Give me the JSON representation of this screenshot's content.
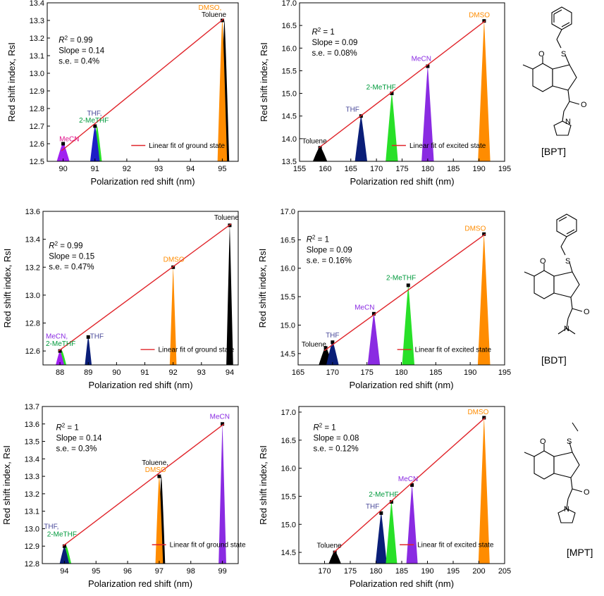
{
  "molecules": [
    {
      "label": "[BPT]",
      "atoms": {
        "O": "O",
        "N": "N"
      }
    },
    {
      "label": "[BDT]",
      "atoms": {
        "O": "O",
        "N": "N"
      }
    },
    {
      "label": "[MPT]",
      "atoms": {
        "O": "O",
        "N": "N"
      }
    }
  ],
  "chart_data": [
    {
      "type": "area",
      "xlabel": "Polarization red shift (nm)",
      "ylabel": "Red shift index, RsI",
      "xlim": [
        89.5,
        95.5
      ],
      "ylim": [
        12.5,
        13.4
      ],
      "xticks": [
        "90",
        "91",
        "92",
        "93",
        "94",
        "95"
      ],
      "yticks": [
        "12.5",
        "12.6",
        "12.7",
        "12.8",
        "12.9",
        "13.0",
        "13.1",
        "13.2",
        "13.3",
        "13.4"
      ],
      "fit_label": "Linear fit of ground state",
      "fit_line": {
        "x": [
          89.95,
          95.05
        ],
        "y": [
          12.56,
          13.31
        ]
      },
      "stats": {
        "r2": "R² = 0.99",
        "slope": "Slope = 0.14",
        "se": "s.e. = 0.4%"
      },
      "peaks": [
        {
          "name": "MeCN",
          "x": 90,
          "y": 12.6,
          "hw": 0.2,
          "colors": [
            "#a020f0"
          ]
        },
        {
          "name": "THF",
          "x": 91,
          "y": 12.7,
          "hw": 0.15,
          "colors": [
            "#1e1ec8",
            "#28e028"
          ]
        },
        {
          "name": "2-MeTHF",
          "x": 91,
          "y": 12.7,
          "hw": 0.15,
          "colors": []
        },
        {
          "name": "DMSO",
          "x": 95,
          "y": 13.3,
          "hw": 0.15,
          "colors": [
            "#ff8c00",
            "#000000"
          ]
        },
        {
          "name": "Toluene",
          "x": 95,
          "y": 13.3,
          "hw": 0.15,
          "colors": []
        }
      ],
      "peak_labels": [
        {
          "text": "MeCN",
          "color": "#e0148c",
          "x": 89.88,
          "y": 12.615
        },
        {
          "text": "THF,",
          "color": "#4a4a9a",
          "x": 90.75,
          "y": 12.76
        },
        {
          "text": "2-MeTHF",
          "color": "#009a3c",
          "x": 90.5,
          "y": 12.72
        },
        {
          "text": "DMSO,",
          "color": "#ff8c00",
          "x": 94.25,
          "y": 13.36
        },
        {
          "text": "Toluene",
          "color": "#000000",
          "x": 94.35,
          "y": 13.32
        }
      ]
    },
    {
      "type": "area",
      "xlabel": "Polarization red shift (nm)",
      "ylabel": "Red shift index, RsI",
      "xlim": [
        155,
        195
      ],
      "ylim": [
        13.5,
        17.0
      ],
      "xticks": [
        "155",
        "160",
        "165",
        "170",
        "175",
        "180",
        "185",
        "190",
        "195"
      ],
      "yticks": [
        "13.5",
        "14.0",
        "14.5",
        "15.0",
        "15.5",
        "16.0",
        "16.5",
        "17.0"
      ],
      "fit_label": "Linear fit of excited state",
      "fit_line": {
        "x": [
          158.8,
          191.2
        ],
        "y": [
          13.8,
          16.6
        ]
      },
      "stats": {
        "r2": "R² = 1",
        "slope": "Slope = 0.09",
        "se": "s.e. = 0.08%"
      },
      "peaks": [
        {
          "name": "Toluene",
          "x": 159,
          "y": 13.8,
          "hw": 1.4,
          "colors": [
            "#000000"
          ]
        },
        {
          "name": "THF",
          "x": 167,
          "y": 14.5,
          "hw": 1.2,
          "colors": [
            "#0a1e78"
          ]
        },
        {
          "name": "2-MeTHF",
          "x": 173,
          "y": 15.0,
          "hw": 1.2,
          "colors": [
            "#28e028"
          ]
        },
        {
          "name": "MeCN",
          "x": 180,
          "y": 15.6,
          "hw": 1.2,
          "colors": [
            "#8a2be2"
          ]
        },
        {
          "name": "DMSO",
          "x": 191,
          "y": 16.6,
          "hw": 1.2,
          "colors": [
            "#ff8c00"
          ]
        }
      ],
      "peak_labels": [
        {
          "text": "Toluene",
          "color": "#000000",
          "x": 155.5,
          "y": 13.9
        },
        {
          "text": "THF",
          "color": "#4a4a9a",
          "x": 164,
          "y": 14.6
        },
        {
          "text": "2-MeTHF",
          "color": "#009a3c",
          "x": 168,
          "y": 15.09
        },
        {
          "text": "MeCN",
          "color": "#8a2be2",
          "x": 176.8,
          "y": 15.72
        },
        {
          "text": "DMSO",
          "color": "#ff8c00",
          "x": 188,
          "y": 16.68
        }
      ]
    },
    {
      "type": "area",
      "xlabel": "Polarization red shift (nm)",
      "ylabel": "Red shift index, RsI",
      "xlim": [
        87.4,
        94.3
      ],
      "ylim": [
        12.5,
        13.6
      ],
      "xticks": [
        "88",
        "89",
        "90",
        "91",
        "92",
        "93",
        "94"
      ],
      "yticks": [
        "12.6",
        "12.8",
        "13.0",
        "13.2",
        "13.4",
        "13.6"
      ],
      "fit_label": "Linear fit of ground state",
      "fit_line": {
        "x": [
          87.95,
          94.05
        ],
        "y": [
          12.6,
          13.51
        ]
      },
      "stats": {
        "r2": "R² = 0.99",
        "slope": "Slope = 0.15",
        "se": "s.e. = 0.47%"
      },
      "peaks": [
        {
          "name": "MeCN",
          "x": 88,
          "y": 12.6,
          "hw": 0.15,
          "colors": [
            "#a020f0",
            "#28e028"
          ]
        },
        {
          "name": "2-MeTHF",
          "x": 88,
          "y": 12.6,
          "hw": 0.15,
          "colors": []
        },
        {
          "name": "THF",
          "x": 89,
          "y": 12.7,
          "hw": 0.12,
          "colors": [
            "#0a1e78"
          ]
        },
        {
          "name": "DMSO",
          "x": 92,
          "y": 13.2,
          "hw": 0.12,
          "colors": [
            "#ff8c00"
          ]
        },
        {
          "name": "Toluene",
          "x": 94,
          "y": 13.5,
          "hw": 0.12,
          "colors": [
            "#000000"
          ]
        }
      ],
      "peak_labels": [
        {
          "text": "MeCN,",
          "color": "#8a2be2",
          "x": 87.5,
          "y": 12.69
        },
        {
          "text": "2-MeTHF",
          "color": "#009a3c",
          "x": 87.5,
          "y": 12.635
        },
        {
          "text": "THF",
          "color": "#4a4a9a",
          "x": 89.06,
          "y": 12.69
        },
        {
          "text": "DMSO",
          "color": "#ff8c00",
          "x": 91.65,
          "y": 13.24
        },
        {
          "text": "Toluene",
          "color": "#000000",
          "x": 93.45,
          "y": 13.54
        }
      ]
    },
    {
      "type": "area",
      "xlabel": "Polarization red shift (nm)",
      "ylabel": "Red shift index, RsI",
      "xlim": [
        165,
        195
      ],
      "ylim": [
        14.3,
        17.0
      ],
      "xticks": [
        "165",
        "170",
        "175",
        "180",
        "185",
        "190",
        "195"
      ],
      "yticks": [
        "14.5",
        "15.0",
        "15.5",
        "16.0",
        "16.5",
        "17.0"
      ],
      "fit_label": "Linear fit of excited state",
      "fit_line": {
        "x": [
          168.8,
          192.2
        ],
        "y": [
          14.55,
          16.6
        ]
      },
      "stats": {
        "r2": "R² = 1",
        "slope": "Slope = 0.09",
        "se": "s.e. = 0.16%"
      },
      "peaks": [
        {
          "name": "Toluene",
          "x": 169,
          "y": 14.6,
          "hw": 1.0,
          "colors": [
            "#000000"
          ]
        },
        {
          "name": "THF",
          "x": 170,
          "y": 14.7,
          "hw": 0.9,
          "colors": [
            "#0a1e78"
          ]
        },
        {
          "name": "MeCN",
          "x": 176,
          "y": 15.2,
          "hw": 0.9,
          "colors": [
            "#8a2be2"
          ]
        },
        {
          "name": "2-MeTHF",
          "x": 181,
          "y": 15.7,
          "hw": 0.9,
          "colors": [
            "#28e028"
          ]
        },
        {
          "name": "DMSO",
          "x": 192,
          "y": 16.6,
          "hw": 0.9,
          "colors": [
            "#ff8c00"
          ]
        }
      ],
      "peak_labels": [
        {
          "text": "Toluene",
          "color": "#000000",
          "x": 165.5,
          "y": 14.62
        },
        {
          "text": "THF",
          "color": "#4a4a9a",
          "x": 169,
          "y": 14.78
        },
        {
          "text": "MeCN",
          "color": "#8a2be2",
          "x": 173.2,
          "y": 15.27
        },
        {
          "text": "2-MeTHF",
          "color": "#009a3c",
          "x": 177.8,
          "y": 15.79
        },
        {
          "text": "DMSO",
          "color": "#ff8c00",
          "x": 189.2,
          "y": 16.66
        }
      ]
    },
    {
      "type": "area",
      "xlabel": "Polarization red shift (nm)",
      "ylabel": "Red shift index, RsI",
      "xlim": [
        93.3,
        99.5
      ],
      "ylim": [
        12.8,
        13.7
      ],
      "xticks": [
        "94",
        "95",
        "96",
        "97",
        "98",
        "99"
      ],
      "yticks": [
        "12.8",
        "12.9",
        "13.0",
        "13.1",
        "13.2",
        "13.3",
        "13.4",
        "13.5",
        "13.6",
        "13.7"
      ],
      "fit_label": "Linear fit of ground state",
      "fit_line": {
        "x": [
          93.95,
          99.05
        ],
        "y": [
          12.9,
          13.6
        ]
      },
      "stats": {
        "r2": "R² = 1",
        "slope": "Slope = 0.14",
        "se": "s.e. = 0.3%"
      },
      "peaks": [
        {
          "name": "THF",
          "x": 94,
          "y": 12.9,
          "hw": 0.15,
          "colors": [
            "#0a1e78",
            "#28e028"
          ]
        },
        {
          "name": "2-MeTHF",
          "x": 94,
          "y": 12.9,
          "hw": 0.15,
          "colors": []
        },
        {
          "name": "Toluene",
          "x": 97,
          "y": 13.3,
          "hw": 0.12,
          "colors": [
            "#ff8c00",
            "#000000"
          ]
        },
        {
          "name": "DMSO",
          "x": 97,
          "y": 13.3,
          "hw": 0.12,
          "colors": []
        },
        {
          "name": "MeCN",
          "x": 99,
          "y": 13.6,
          "hw": 0.12,
          "colors": [
            "#8a2be2"
          ]
        }
      ],
      "peak_labels": [
        {
          "text": "THF,",
          "color": "#4a4a9a",
          "x": 93.35,
          "y": 13.0
        },
        {
          "text": "2-MeTHF",
          "color": "#009a3c",
          "x": 93.45,
          "y": 12.955
        },
        {
          "text": "Toluene,",
          "color": "#000000",
          "x": 96.45,
          "y": 13.365
        },
        {
          "text": "DMSO",
          "color": "#ff8c00",
          "x": 96.55,
          "y": 13.325
        },
        {
          "text": "MeCN",
          "color": "#8a2be2",
          "x": 98.6,
          "y": 13.63
        }
      ]
    },
    {
      "type": "area",
      "xlabel": "Polarization red shift (nm)",
      "ylabel": "Red shift index, RsI",
      "xlim": [
        165,
        205
      ],
      "ylim": [
        14.3,
        17.1
      ],
      "xticks": [
        "170",
        "175",
        "180",
        "185",
        "190",
        "195",
        "200",
        "205"
      ],
      "yticks": [
        "14.5",
        "15.0",
        "15.5",
        "16.0",
        "16.5",
        "17.0"
      ],
      "fit_label": "Linear fit of excited state",
      "fit_line": {
        "x": [
          171.8,
          201.2
        ],
        "y": [
          14.5,
          16.9
        ]
      },
      "stats": {
        "r2": "R² = 1",
        "slope": "Slope = 0.08",
        "se": "s.e. = 0.12%"
      },
      "peaks": [
        {
          "name": "Toluene",
          "x": 172,
          "y": 14.5,
          "hw": 1.2,
          "colors": [
            "#000000"
          ]
        },
        {
          "name": "THF",
          "x": 181,
          "y": 15.2,
          "hw": 1.1,
          "colors": [
            "#0a1e78"
          ]
        },
        {
          "name": "2-MeTHF",
          "x": 183,
          "y": 15.4,
          "hw": 1.1,
          "colors": [
            "#28e028"
          ]
        },
        {
          "name": "MeCN",
          "x": 187,
          "y": 15.7,
          "hw": 1.1,
          "colors": [
            "#8a2be2"
          ]
        },
        {
          "name": "DMSO",
          "x": 201,
          "y": 16.9,
          "hw": 1.1,
          "colors": [
            "#ff8c00"
          ]
        }
      ],
      "peak_labels": [
        {
          "text": "Toluene",
          "color": "#000000",
          "x": 168.5,
          "y": 14.58
        },
        {
          "text": "THF",
          "color": "#4a4a9a",
          "x": 178,
          "y": 15.28
        },
        {
          "text": "2-MeTHF",
          "color": "#009a3c",
          "x": 178.6,
          "y": 15.49
        },
        {
          "text": "MeCN",
          "color": "#8a2be2",
          "x": 184.3,
          "y": 15.77
        },
        {
          "text": "DMSO",
          "color": "#ff8c00",
          "x": 197.8,
          "y": 16.96
        }
      ]
    }
  ]
}
